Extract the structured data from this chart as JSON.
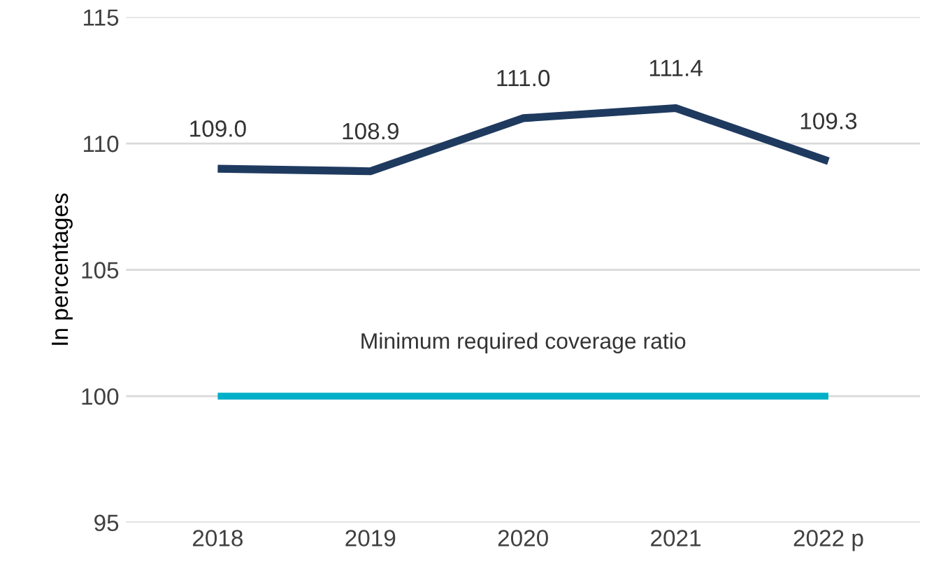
{
  "chart_data": {
    "type": "line",
    "ylabel": "In percentages",
    "categories": [
      "2018",
      "2019",
      "2020",
      "2021",
      "2022 p"
    ],
    "series": [
      {
        "color": "#1f3a5f",
        "values": [
          109.0,
          108.9,
          111.0,
          111.4,
          109.3
        ],
        "value_labels": [
          "109.0",
          "108.9",
          "111.0",
          "111.4",
          "109.3"
        ]
      },
      {
        "name": "Minimum required coverage ratio",
        "color": "#00afc8",
        "values": [
          100,
          100,
          100,
          100,
          100
        ]
      }
    ],
    "ylim": [
      95,
      115
    ],
    "yticks": [
      95,
      100,
      105,
      110,
      115
    ],
    "grid": "y",
    "legend": false,
    "marker": "none",
    "line_style": "solid"
  }
}
